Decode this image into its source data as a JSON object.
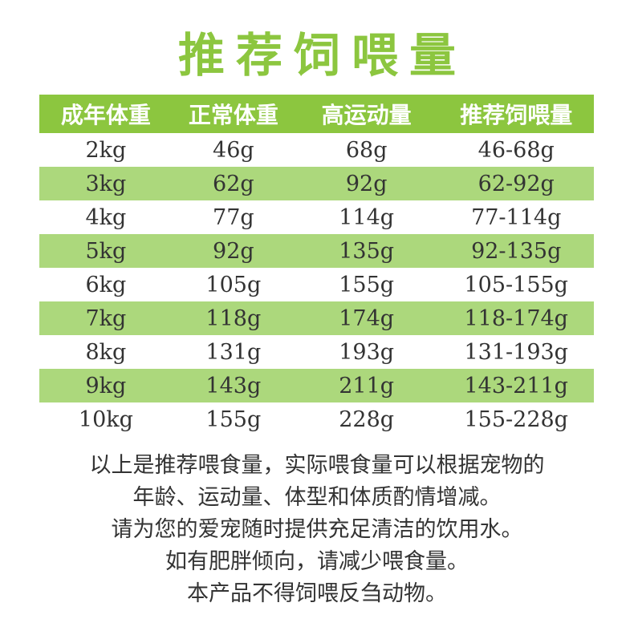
{
  "colors": {
    "accent_green": "#8CC63F",
    "stripe_green": "#ACD87C",
    "header_text": "#FFFFFF",
    "body_text": "#333333",
    "background": "#FFFFFF"
  },
  "chart_data": {
    "type": "table",
    "title": "推荐饲喂量",
    "columns": [
      "成年体重",
      "正常体重",
      "高运动量",
      "推荐饲喂量"
    ],
    "rows": [
      [
        "2kg",
        "46g",
        "68g",
        "46-68g"
      ],
      [
        "3kg",
        "62g",
        "92g",
        "62-92g"
      ],
      [
        "4kg",
        "77g",
        "114g",
        "77-114g"
      ],
      [
        "5kg",
        "92g",
        "135g",
        "92-135g"
      ],
      [
        "6kg",
        "105g",
        "155g",
        "105-155g"
      ],
      [
        "7kg",
        "118g",
        "174g",
        "118-174g"
      ],
      [
        "8kg",
        "131g",
        "193g",
        "131-193g"
      ],
      [
        "9kg",
        "143g",
        "211g",
        "143-211g"
      ],
      [
        "10kg",
        "155g",
        "228g",
        "155-228g"
      ]
    ],
    "striped_row_indices": [
      1,
      3,
      5,
      7
    ],
    "notes": [
      "以上是推荐喂食量，实际喂食量可以根据宠物的",
      "年龄、运动量、体型和体质酌情增减。",
      "请为您的爱宠随时提供充足清洁的饮用水。",
      "如有肥胖倾向，请减少喂食量。",
      "本产品不得饲喂反刍动物。"
    ]
  }
}
